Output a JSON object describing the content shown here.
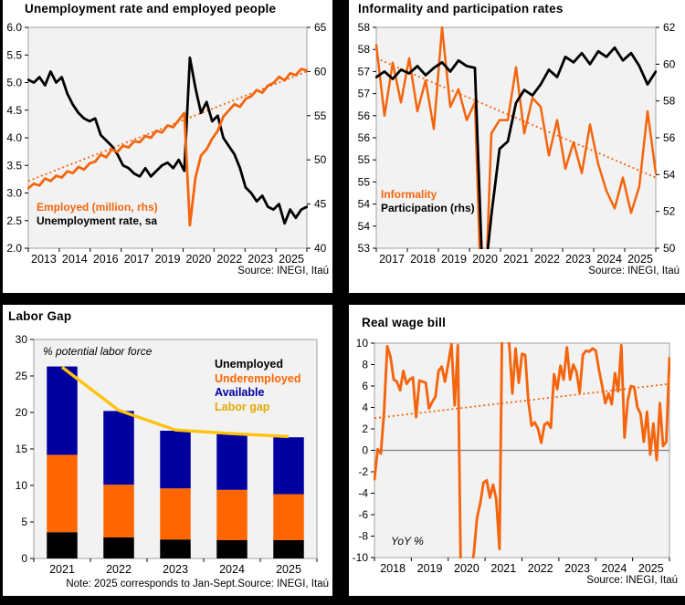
{
  "colors": {
    "orange": "#F4650D",
    "bar_orange": "#FF6600",
    "black": "#000000",
    "navy": "#0000A0",
    "yellow": "#FFC20E",
    "yellow_text": "#E3A900",
    "plot_bg": "#F2F2F2",
    "plot_border": "#A0A0A0",
    "zero_line": "#808080",
    "frame": "#000000"
  },
  "chart_data": [
    {
      "id": "unemployment_employment",
      "type": "line",
      "title": "Unemployment rate and employed people",
      "source": "Source: INEGI, Itaú",
      "x_range": [
        2013,
        2025.75
      ],
      "x_ticklabels": [
        "2013",
        "2014",
        "2016",
        "2017",
        "2019",
        "2020",
        "2022",
        "2023",
        "2025"
      ],
      "y_left": {
        "min": 2.0,
        "max": 6.0,
        "ticklabels": [
          "6.0",
          "5.5",
          "5.0",
          "4.5",
          "4.0",
          "3.5",
          "3.0",
          "2.5",
          "2.0"
        ]
      },
      "y_right": {
        "min": 40,
        "max": 65,
        "ticklabels": [
          "65",
          "60",
          "55",
          "50",
          "45",
          "40"
        ]
      },
      "grid": false,
      "labels": {
        "line1": "Employed (million, rhs)",
        "line2": "Unemployment rate, sa"
      },
      "series": [
        {
          "name": "employed-trend",
          "axis": "right",
          "color": "orange",
          "style": "dotted",
          "trend": [
            47.6,
            60.0
          ]
        },
        {
          "name": "Unemployment rate, sa",
          "axis": "left",
          "color": "black",
          "width": 2.8,
          "points": [
            5.05,
            5.0,
            5.1,
            4.95,
            5.2,
            5.0,
            5.1,
            4.8,
            4.6,
            4.45,
            4.35,
            4.3,
            4.35,
            4.05,
            3.95,
            3.85,
            3.7,
            3.5,
            3.45,
            3.35,
            3.3,
            3.45,
            3.3,
            3.4,
            3.5,
            3.55,
            3.45,
            3.6,
            3.4,
            5.45,
            4.9,
            4.45,
            4.65,
            4.3,
            4.4,
            4.0,
            3.85,
            3.7,
            3.45,
            3.1,
            3.0,
            2.85,
            2.95,
            2.75,
            2.7,
            2.8,
            2.45,
            2.7,
            2.55,
            2.7,
            2.75
          ]
        },
        {
          "name": "Employed (million, rhs)",
          "axis": "right",
          "color": "orange",
          "width": 2.8,
          "points": [
            46.8,
            47.3,
            47.1,
            47.9,
            47.6,
            48.2,
            48.0,
            48.7,
            48.5,
            49.2,
            48.9,
            49.6,
            49.8,
            50.6,
            50.3,
            51.2,
            50.9,
            51.6,
            51.4,
            52.1,
            52.0,
            52.7,
            52.5,
            53.3,
            53.1,
            53.9,
            53.7,
            54.5,
            55.3,
            42.6,
            48.0,
            50.5,
            51.2,
            52.4,
            53.3,
            54.9,
            55.6,
            56.3,
            56.0,
            56.9,
            57.2,
            57.9,
            57.6,
            58.4,
            58.7,
            59.4,
            59.0,
            59.8,
            59.6,
            60.3,
            60.1
          ]
        }
      ]
    },
    {
      "id": "informality_participation",
      "type": "line",
      "title": "Informality and participation rates",
      "source": "Source: INEGI, Itaú",
      "x_range": [
        2017,
        2025.75
      ],
      "x_ticklabels": [
        "2017",
        "2018",
        "2019",
        "2020",
        "2021",
        "2022",
        "2023",
        "2024",
        "2025"
      ],
      "y_left": {
        "min": 53,
        "max": 58,
        "ticklabels": [
          "58",
          "58",
          "57",
          "57",
          "56",
          "56",
          "55",
          "55",
          "54",
          "54",
          "53"
        ]
      },
      "y_right": {
        "min": 50,
        "max": 62,
        "ticklabels": [
          "62",
          "60",
          "58",
          "56",
          "54",
          "52",
          "50"
        ]
      },
      "grid": false,
      "labels": {
        "line1": "Informality",
        "line2": "Participation (rhs)"
      },
      "series": [
        {
          "name": "informality-trend",
          "axis": "left",
          "color": "orange",
          "style": "dotted",
          "trend": [
            57.3,
            54.6
          ]
        },
        {
          "name": "Informality",
          "axis": "left",
          "color": "orange",
          "width": 2.5,
          "points": [
            57.6,
            56.0,
            57.2,
            56.3,
            57.3,
            56.1,
            56.8,
            55.7,
            58.0,
            56.2,
            56.6,
            55.9,
            56.3,
            50.5,
            55.6,
            55.9,
            55.9,
            57.1,
            55.6,
            56.4,
            56.2,
            55.1,
            55.9,
            54.8,
            55.4,
            54.7,
            55.8,
            54.9,
            54.3,
            53.9,
            54.6,
            53.8,
            54.4,
            56.1,
            54.7
          ]
        },
        {
          "name": "Participation (rhs)",
          "axis": "right",
          "color": "black",
          "width": 2.8,
          "points": [
            59.3,
            59.6,
            59.2,
            59.7,
            59.5,
            59.9,
            59.4,
            59.8,
            60.1,
            59.6,
            60.2,
            59.9,
            59.8,
            47.5,
            51.8,
            55.4,
            55.8,
            57.9,
            58.6,
            58.3,
            58.9,
            59.7,
            59.3,
            60.4,
            60.1,
            60.6,
            60.0,
            60.7,
            60.4,
            60.9,
            60.2,
            60.6,
            59.9,
            58.9,
            59.6
          ]
        }
      ]
    },
    {
      "id": "labor_gap",
      "type": "bar_stacked_line",
      "title": "Labor Gap",
      "note": "Note: 2025 corresponds to Jan-Sept.Source: INEGI, Itaú",
      "axis_note": "% potential labor force",
      "categories": [
        "2021",
        "2022",
        "2023",
        "2024",
        "2025"
      ],
      "y_left": {
        "min": 0,
        "max": 30,
        "ticklabels": [
          "30",
          "25",
          "20",
          "15",
          "10",
          "5",
          "0"
        ]
      },
      "grid": false,
      "stacks": [
        {
          "name": "Unemployed",
          "color": "black",
          "values": [
            3.6,
            2.9,
            2.6,
            2.5,
            2.5
          ]
        },
        {
          "name": "Underemployed",
          "color": "bar_orange",
          "values": [
            10.6,
            7.2,
            7.0,
            6.9,
            6.3
          ]
        },
        {
          "name": "Available",
          "color": "navy",
          "values": [
            12.1,
            10.1,
            7.9,
            7.7,
            7.8
          ]
        }
      ],
      "line": {
        "name": "Labor gap",
        "color": "yellow",
        "values": [
          26.2,
          20.3,
          17.6,
          17.1,
          16.7
        ]
      },
      "legend": [
        {
          "label": "Unemployed",
          "color": "black"
        },
        {
          "label": "Underemployed",
          "color": "bar_orange"
        },
        {
          "label": "Available",
          "color": "navy"
        },
        {
          "label": "Labor gap",
          "color": "yellow_text"
        }
      ]
    },
    {
      "id": "real_wage_bill",
      "type": "line",
      "title": "Real wage bill",
      "source": "Source: INEGI, Itaú",
      "axis_note": "YoY %",
      "x_range": [
        2018,
        2025.75
      ],
      "x_ticklabels": [
        "2018",
        "2019",
        "2020",
        "2021",
        "2022",
        "2023",
        "2024",
        "2025"
      ],
      "y_left": {
        "min": -10,
        "max": 10,
        "ticklabels": [
          "10",
          "8",
          "6",
          "4",
          "2",
          "0",
          "-2",
          "-4",
          "-6",
          "-8",
          "-10"
        ]
      },
      "zero_line": true,
      "grid": false,
      "series": [
        {
          "name": "real-wage-trend",
          "axis": "left",
          "color": "orange",
          "style": "dotted",
          "trend": [
            3.0,
            6.2
          ]
        },
        {
          "name": "Real wage bill, YoY %",
          "axis": "left",
          "color": "orange",
          "width": 2.9,
          "points": [
            -2.7,
            0.1,
            -0.3,
            3.6,
            9.7,
            8.7,
            6.6,
            6.4,
            5.6,
            7.4,
            6.2,
            6.6,
            6.8,
            3.1,
            6.5,
            6.4,
            6.3,
            3.9,
            4.5,
            5.0,
            7.4,
            7.8,
            6.4,
            8.1,
            9.9,
            4.2,
            9.8,
            -13.5,
            -16.0,
            -14.0,
            -11.5,
            -9.6,
            -6.3,
            -4.9,
            -3.0,
            -2.8,
            -4.4,
            -3.2,
            -4.6,
            -9.2,
            16.0,
            12.5,
            10.0,
            5.3,
            9.5,
            6.3,
            9.0,
            8.9,
            4.6,
            2.3,
            2.6,
            2.0,
            0.7,
            2.4,
            2.6,
            2.1,
            7.1,
            5.7,
            7.9,
            6.6,
            9.6,
            6.6,
            8.0,
            7.3,
            5.4,
            8.9,
            9.3,
            9.2,
            9.5,
            9.3,
            7.5,
            6.0,
            4.4,
            5.3,
            4.3,
            7.2,
            5.5,
            9.8,
            1.2,
            4.7,
            6.0,
            5.9,
            4.0,
            3.4,
            0.8,
            3.6,
            -0.4,
            2.5,
            -0.9,
            4.4,
            0.4,
            0.8,
            8.6
          ]
        }
      ]
    }
  ]
}
